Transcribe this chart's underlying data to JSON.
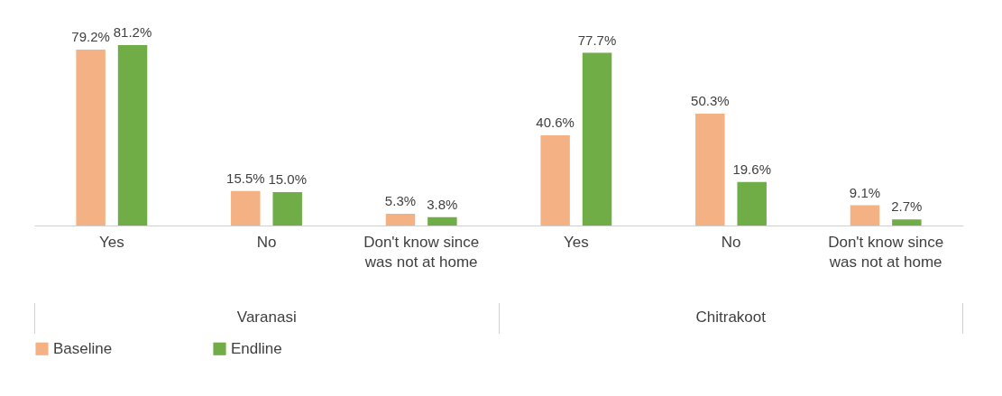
{
  "chart_data": {
    "type": "bar",
    "categories": [
      "Yes",
      "No",
      "Don't know since\nwas not at home",
      "Yes",
      "No",
      "Don't know since\nwas not at home"
    ],
    "series": [
      {
        "name": "Baseline",
        "color": "#f4b183",
        "values": [
          79.2,
          15.5,
          5.3,
          40.6,
          50.3,
          9.1
        ],
        "value_labels": [
          "79.2%",
          "15.5%",
          "5.3%",
          "40.6%",
          "50.3%",
          "9.1%"
        ]
      },
      {
        "name": "Endline",
        "color": "#70ad47",
        "values": [
          81.2,
          15.0,
          3.8,
          77.7,
          19.6,
          2.7
        ],
        "value_labels": [
          "81.2%",
          "15.0%",
          "3.8%",
          "77.7%",
          "19.6%",
          "2.7%"
        ]
      }
    ],
    "annotations": [
      "Varanasi",
      "Chitrakoot"
    ],
    "legend": "bottom",
    "grid": false
  }
}
